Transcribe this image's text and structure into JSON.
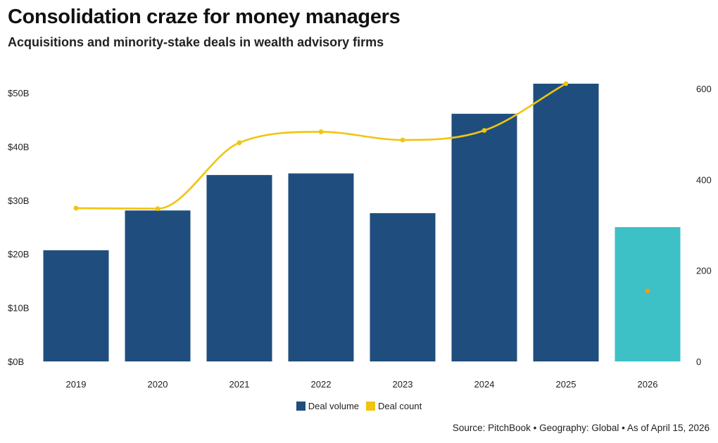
{
  "title": "Consolidation craze for money managers",
  "subtitle": "Acquisitions and minority-stake deals in wealth advisory firms",
  "source": "Source: PitchBook • Geography: Global • As of April 15, 2026",
  "colors": {
    "bar": "#1f4e7e",
    "bar_partial": "#3ec1c6",
    "line": "#f1c40f",
    "partial_point": "#f39c12"
  },
  "chart_data": {
    "type": "bar",
    "categories": [
      "2019",
      "2020",
      "2021",
      "2022",
      "2023",
      "2024",
      "2025",
      "2026"
    ],
    "series": [
      {
        "name": "Deal volume",
        "type": "bar",
        "axis": "left",
        "values": [
          20.7,
          28.1,
          34.7,
          35.0,
          27.6,
          46.1,
          51.7,
          25.0
        ],
        "partial": [
          false,
          false,
          false,
          false,
          false,
          false,
          false,
          true
        ]
      },
      {
        "name": "Deal count",
        "type": "line",
        "axis": "right",
        "values": [
          337,
          336,
          481,
          505,
          487,
          508,
          611,
          155
        ],
        "partial": [
          false,
          false,
          false,
          false,
          false,
          false,
          false,
          true
        ]
      }
    ],
    "y_left": {
      "ylim": [
        0,
        50
      ],
      "ticks": [
        0,
        10,
        20,
        30,
        40,
        50
      ],
      "tick_labels": [
        "$0B",
        "$10B",
        "$20B",
        "$30B",
        "$40B",
        "$50B"
      ]
    },
    "y_right": {
      "ylim": [
        0,
        600
      ],
      "ticks": [
        0,
        200,
        400,
        600
      ],
      "tick_labels": [
        "0",
        "200",
        "400",
        "600"
      ]
    },
    "grid": false,
    "legend": "bottom-center"
  }
}
